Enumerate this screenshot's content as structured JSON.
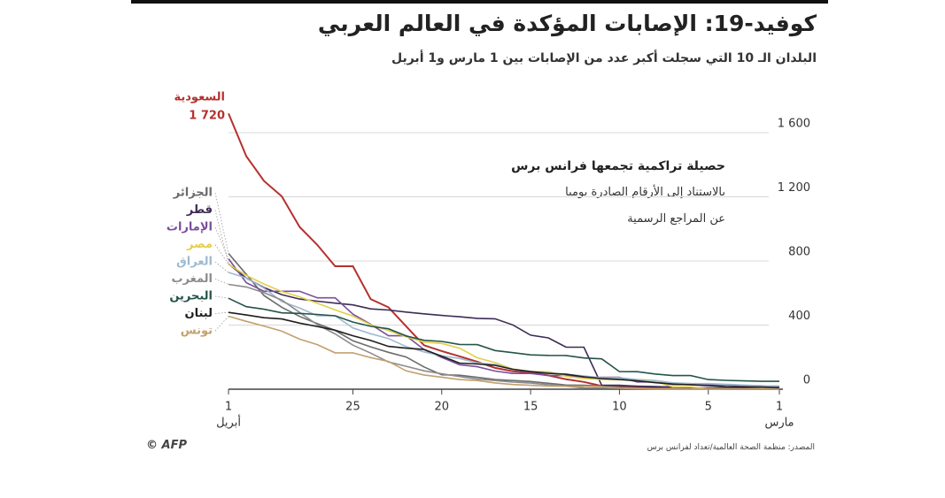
{
  "chart_data": {
    "type": "line",
    "title": "كوفيد-19: الإصابات المؤكدة في العالم العربي",
    "subtitle": "البلدان الـ 10 التي سجلت أكبر عدد من الإصابات بين 1 مارس و1 أبريل",
    "annotation": [
      "حصيلة تراكمية تجمعها فرانس برس",
      "بالاستناد إلى الأرقام الصادرة يوميا",
      "عن المراجع الرسمية"
    ],
    "source": "المصدر: منظمة الصحة العالمية/تعداد لفرانس برس",
    "logo": "© AFP",
    "x_label_right": "مارس",
    "x_label_left": "أبريل",
    "x": [
      1,
      2,
      3,
      4,
      5,
      6,
      7,
      8,
      9,
      10,
      11,
      12,
      13,
      14,
      15,
      16,
      17,
      18,
      19,
      20,
      21,
      22,
      23,
      24,
      25,
      26,
      27,
      28,
      29,
      30,
      31,
      32
    ],
    "xlim": [
      32,
      1
    ],
    "xticks": [
      1,
      5,
      10,
      15,
      20,
      25,
      {
        "value": 32,
        "label": "1"
      }
    ],
    "ylim": [
      0,
      1600
    ],
    "yticks": [
      0,
      400,
      800,
      {
        "value": 1200,
        "label": "1 200"
      },
      {
        "value": 1600,
        "label": "1 600"
      }
    ],
    "grid": true,
    "series": [
      {
        "name": "السعودية",
        "color": "#b5312f",
        "values": [
          0,
          1,
          1,
          1,
          5,
          5,
          5,
          7,
          11,
          15,
          20,
          45,
          62,
          86,
          103,
          112,
          133,
          171,
          205,
          238,
          274,
          392,
          511,
          562,
          767,
          767,
          900,
          1012,
          1203,
          1299,
          1453,
          1720
        ],
        "value_labels": [
          null,
          null,
          null,
          null,
          null,
          null,
          null,
          null,
          null,
          null,
          null,
          null,
          null,
          null,
          null,
          null,
          null,
          null,
          null,
          null,
          null,
          null,
          null,
          null,
          null,
          null,
          null,
          null,
          null,
          null,
          null,
          "1 720"
        ]
      },
      {
        "name": "الجزائر",
        "color": "#6b6b6b",
        "values": [
          0,
          1,
          1,
          3,
          5,
          5,
          12,
          17,
          19,
          20,
          20,
          24,
          26,
          37,
          48,
          54,
          60,
          74,
          87,
          90,
          139,
          201,
          230,
          264,
          302,
          367,
          409,
          454,
          511,
          584,
          716,
          847
        ]
      },
      {
        "name": "قطر",
        "color": "#3d2b56",
        "values": [
          1,
          3,
          7,
          8,
          8,
          8,
          15,
          15,
          18,
          24,
          24,
          262,
          262,
          320,
          337,
          401,
          439,
          442,
          452,
          460,
          470,
          481,
          494,
          501,
          526,
          537,
          549,
          562,
          590,
          634,
          693,
          781
        ]
      },
      {
        "name": "الإمارات",
        "color": "#7a4e9c",
        "values": [
          19,
          21,
          21,
          27,
          27,
          29,
          29,
          45,
          45,
          74,
          74,
          74,
          85,
          85,
          98,
          98,
          113,
          140,
          153,
          198,
          248,
          333,
          333,
          405,
          468,
          570,
          570,
          611,
          611,
          611,
          664,
          814
        ]
      },
      {
        "name": "مصر",
        "color": "#e3cf4a",
        "values": [
          2,
          2,
          2,
          2,
          3,
          15,
          15,
          49,
          55,
          59,
          60,
          67,
          80,
          109,
          110,
          126,
          166,
          196,
          256,
          285,
          294,
          327,
          366,
          402,
          456,
          495,
          536,
          576,
          609,
          656,
          710,
          779
        ]
      },
      {
        "name": "العراق",
        "color": "#9dbad0",
        "values": [
          19,
          21,
          26,
          31,
          35,
          36,
          40,
          54,
          60,
          71,
          71,
          83,
          93,
          101,
          110,
          124,
          154,
          164,
          192,
          208,
          233,
          266,
          316,
          346,
          382,
          458,
          458,
          506,
          547,
          630,
          694,
          728
        ]
      },
      {
        "name": "المغرب",
        "color": "#8c8c8c",
        "values": [
          1,
          1,
          1,
          2,
          2,
          2,
          2,
          2,
          3,
          6,
          7,
          8,
          18,
          28,
          38,
          44,
          54,
          63,
          79,
          96,
          115,
          143,
          170,
          225,
          275,
          345,
          402,
          479,
          556,
          602,
          638,
          654
        ]
      },
      {
        "name": "البحرين",
        "color": "#25544a",
        "values": [
          49,
          49,
          52,
          55,
          60,
          85,
          85,
          95,
          109,
          110,
          189,
          195,
          210,
          211,
          214,
          228,
          241,
          278,
          279,
          298,
          305,
          332,
          377,
          392,
          419,
          458,
          466,
          473,
          476,
          499,
          515,
          567
        ]
      },
      {
        "name": "لبنان",
        "color": "#1e1e1e",
        "values": [
          10,
          13,
          13,
          16,
          22,
          28,
          32,
          41,
          52,
          61,
          66,
          77,
          93,
          99,
          110,
          124,
          149,
          157,
          163,
          206,
          248,
          256,
          267,
          304,
          333,
          368,
          391,
          412,
          438,
          446,
          463,
          479
        ]
      },
      {
        "name": "تونس",
        "color": "#c3a06d",
        "values": [
          0,
          1,
          1,
          1,
          1,
          2,
          2,
          2,
          5,
          7,
          16,
          18,
          18,
          20,
          24,
          29,
          39,
          54,
          60,
          75,
          89,
          114,
          173,
          197,
          227,
          227,
          278,
          312,
          362,
          394,
          423,
          455
        ]
      }
    ]
  }
}
